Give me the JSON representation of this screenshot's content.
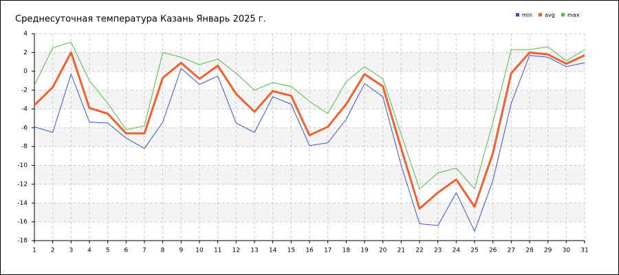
{
  "chart_data": {
    "type": "line",
    "title": "Среднесуточная температура Казань  Январь 2025 г.",
    "categories": [
      "1",
      "2",
      "3",
      "4",
      "5",
      "6",
      "7",
      "8",
      "9",
      "10",
      "11",
      "12",
      "13",
      "14",
      "15",
      "16",
      "17",
      "18",
      "19",
      "20",
      "21",
      "22",
      "23",
      "24",
      "25",
      "26",
      "27",
      "28",
      "29",
      "30",
      "31"
    ],
    "series": [
      {
        "name": "min",
        "color": "#3355cc",
        "values": [
          -5.9,
          -6.5,
          -0.3,
          -5.4,
          -5.5,
          -7.1,
          -8.2,
          -5.4,
          0.3,
          -1.4,
          -0.5,
          -5.5,
          -6.5,
          -2.7,
          -3.5,
          -7.9,
          -7.6,
          -5.1,
          -1.3,
          -2.7,
          -10,
          -16.2,
          -16.4,
          -12.9,
          -17.0,
          -11.6,
          -3.4,
          1.7,
          1.5,
          0.5,
          0.9
        ]
      },
      {
        "name": "avg",
        "color": "#ee6030",
        "values": [
          -3.6,
          -1.7,
          2.0,
          -3.9,
          -4.5,
          -6.6,
          -6.6,
          -0.7,
          0.9,
          -0.8,
          0.6,
          -2.4,
          -4.3,
          -2.1,
          -2.6,
          -6.8,
          -5.9,
          -3.5,
          -0.3,
          -1.6,
          -8.2,
          -14.6,
          -12.9,
          -11.5,
          -14.4,
          -8.7,
          -0.2,
          2.0,
          1.8,
          0.8,
          1.7
        ]
      },
      {
        "name": "max",
        "color": "#55bb44",
        "values": [
          -1.5,
          2.5,
          3.1,
          -1.0,
          -3.4,
          -6.2,
          -5.8,
          2.0,
          1.5,
          0.7,
          1.3,
          -0.2,
          -2.0,
          -1.2,
          -1.6,
          -3.2,
          -4.5,
          -1.1,
          0.5,
          -0.8,
          -6.7,
          -12.5,
          -10.8,
          -10.3,
          -12.5,
          -5.4,
          2.3,
          2.3,
          2.6,
          1.1,
          2.3
        ]
      }
    ],
    "ylim": [
      -18,
      4
    ],
    "yticks": [
      -18,
      -16,
      -14,
      -12,
      -10,
      -8,
      -6,
      -4,
      -2,
      0,
      2,
      4
    ],
    "grid": true,
    "legend": "top-right"
  }
}
